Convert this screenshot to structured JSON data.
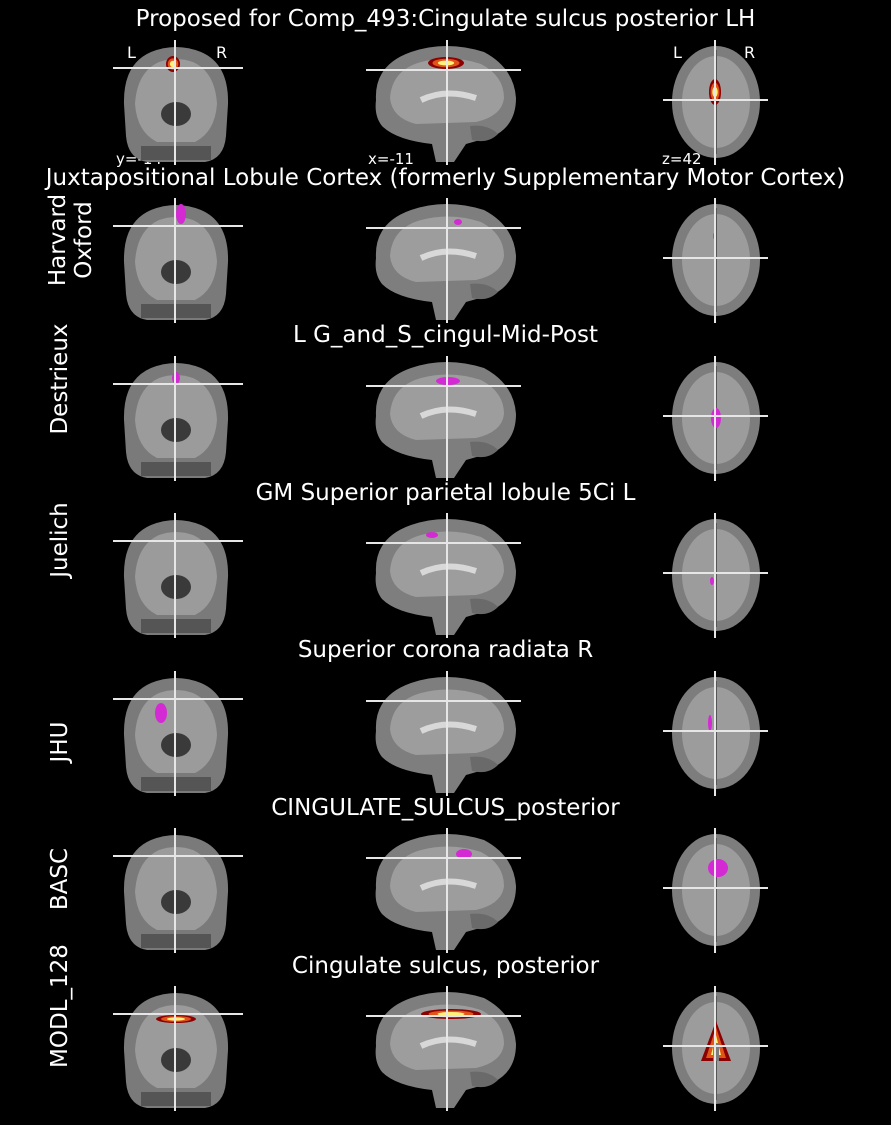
{
  "figure_title": "Proposed for Comp_493:Cingulate sulcus posterior LH",
  "orientation": {
    "left": "L",
    "right": "R"
  },
  "coords": {
    "y": "y=-14",
    "x": "x=-11",
    "z": "z=42"
  },
  "rows": [
    {
      "label": "",
      "title": "Proposed for Comp_493:Cingulate sulcus posterior LH",
      "overlay": "heat"
    },
    {
      "label": "Harvard\nOxford",
      "title": "Juxtapositional Lobule Cortex (formerly Supplementary Motor Cortex)",
      "overlay": "magenta"
    },
    {
      "label": "Destrieux",
      "title": "L G_and_S_cingul-Mid-Post",
      "overlay": "magenta"
    },
    {
      "label": "Juelich",
      "title": "GM Superior parietal lobule 5Ci L",
      "overlay": "magenta"
    },
    {
      "label": "JHU",
      "title": "Superior corona radiata R",
      "overlay": "magenta"
    },
    {
      "label": "BASC",
      "title": "CINGULATE_SULCUS_posterior",
      "overlay": "magenta"
    },
    {
      "label": "MODL_128",
      "title": "Cingulate sulcus, posterior",
      "overlay": "heat"
    }
  ],
  "colors": {
    "background": "#000000",
    "atlas_overlay": "#d42ad4",
    "crosshair": "#e6e6e6",
    "brain": "#8c8c8c"
  }
}
